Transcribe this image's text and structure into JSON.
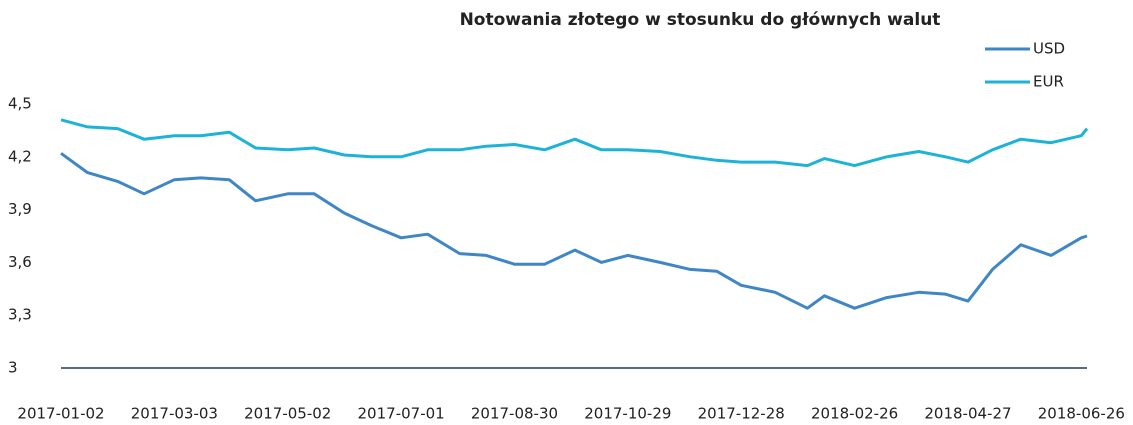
{
  "chart_data": {
    "type": "line",
    "title": "Notowania złotego w stosunku do głównych walut",
    "x": [
      "2017-01-02",
      "2017-01-16",
      "2017-02-01",
      "2017-02-15",
      "2017-03-03",
      "2017-03-17",
      "2017-04-01",
      "2017-04-15",
      "2017-05-02",
      "2017-05-16",
      "2017-06-01",
      "2017-06-15",
      "2017-07-01",
      "2017-07-15",
      "2017-08-01",
      "2017-08-15",
      "2017-08-30",
      "2017-09-15",
      "2017-10-01",
      "2017-10-15",
      "2017-10-29",
      "2017-11-15",
      "2017-12-01",
      "2017-12-15",
      "2017-12-28",
      "2018-01-15",
      "2018-02-01",
      "2018-02-10",
      "2018-02-26",
      "2018-03-15",
      "2018-04-01",
      "2018-04-15",
      "2018-04-27",
      "2018-05-10",
      "2018-05-25",
      "2018-06-10",
      "2018-06-26",
      "2018-06-29"
    ],
    "series": [
      {
        "name": "USD",
        "color": "#3f86c6",
        "values": [
          4.22,
          4.11,
          4.06,
          3.99,
          4.07,
          4.08,
          4.07,
          3.95,
          3.99,
          3.99,
          3.88,
          3.81,
          3.74,
          3.76,
          3.65,
          3.64,
          3.59,
          3.59,
          3.67,
          3.6,
          3.64,
          3.6,
          3.56,
          3.55,
          3.47,
          3.43,
          3.34,
          3.41,
          3.34,
          3.4,
          3.43,
          3.42,
          3.38,
          3.56,
          3.7,
          3.64,
          3.74,
          3.75
        ]
      },
      {
        "name": "EUR",
        "color": "#1db3d8",
        "values": [
          4.41,
          4.37,
          4.36,
          4.3,
          4.32,
          4.32,
          4.34,
          4.25,
          4.24,
          4.25,
          4.21,
          4.2,
          4.2,
          4.24,
          4.24,
          4.26,
          4.27,
          4.24,
          4.3,
          4.24,
          4.24,
          4.23,
          4.2,
          4.18,
          4.17,
          4.17,
          4.15,
          4.19,
          4.15,
          4.2,
          4.23,
          4.2,
          4.17,
          4.24,
          4.3,
          4.28,
          4.32,
          4.36
        ]
      }
    ],
    "xlim": [
      "2017-01-02",
      "2018-06-29"
    ],
    "xticks": [
      "2017-01-02",
      "2017-03-03",
      "2017-05-02",
      "2017-07-01",
      "2017-08-30",
      "2017-10-29",
      "2017-12-28",
      "2018-02-26",
      "2018-04-27",
      "2018-06-26"
    ],
    "ylim": [
      3,
      4.5
    ],
    "yticks": [
      3,
      {
        "value": 3.3,
        "label": "3,3"
      },
      {
        "value": 3.6,
        "label": "3,6"
      },
      {
        "value": 3.9,
        "label": "3,9"
      },
      {
        "value": 4.2,
        "label": "4,2"
      },
      {
        "value": 4.5,
        "label": "4,5"
      }
    ],
    "grid": false,
    "legend": "top-right"
  }
}
